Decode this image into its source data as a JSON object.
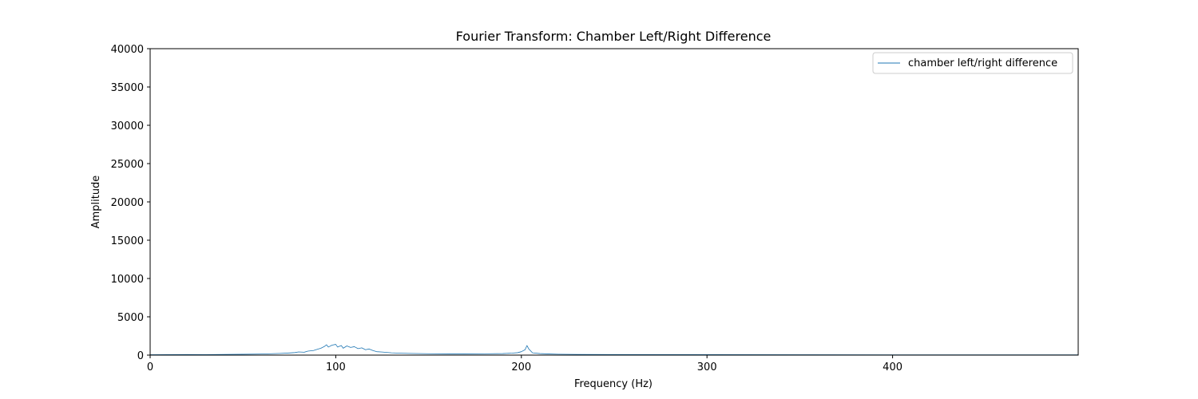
{
  "chart_data": {
    "type": "line",
    "title": "Fourier Transform: Chamber Left/Right Difference",
    "xlabel": "Frequency (Hz)",
    "ylabel": "Amplitude",
    "xlim": [
      0,
      500
    ],
    "ylim": [
      0,
      40000
    ],
    "xticks": [
      0,
      100,
      200,
      300,
      400
    ],
    "xtick_labels": [
      "0",
      "100",
      "200",
      "300",
      "400"
    ],
    "yticks": [
      0,
      5000,
      10000,
      15000,
      20000,
      25000,
      30000,
      35000,
      40000
    ],
    "ytick_labels": [
      "0",
      "5000",
      "10000",
      "15000",
      "20000",
      "25000",
      "30000",
      "35000",
      "40000"
    ],
    "grid": false,
    "legend_position": "top-right",
    "series": [
      {
        "name": "chamber left/right difference",
        "color": "#1f77b4",
        "x": [
          0,
          10,
          20,
          30,
          40,
          50,
          60,
          65,
          70,
          75,
          78,
          80,
          83,
          85,
          88,
          90,
          92,
          94,
          95,
          96,
          98,
          100,
          101,
          103,
          104,
          106,
          108,
          110,
          112,
          114,
          116,
          118,
          120,
          122,
          125,
          130,
          135,
          140,
          150,
          160,
          170,
          180,
          190,
          195,
          198,
          200,
          202,
          203,
          204,
          206,
          210,
          215,
          220,
          230,
          250,
          300,
          350,
          400,
          450,
          500
        ],
        "y": [
          50,
          60,
          80,
          60,
          90,
          110,
          140,
          180,
          220,
          280,
          330,
          420,
          380,
          520,
          600,
          750,
          900,
          1150,
          1350,
          1050,
          1300,
          1400,
          1050,
          1250,
          900,
          1200,
          1000,
          1100,
          850,
          950,
          700,
          800,
          600,
          450,
          400,
          300,
          250,
          220,
          180,
          160,
          150,
          170,
          200,
          260,
          320,
          450,
          700,
          1250,
          800,
          300,
          200,
          150,
          120,
          90,
          70,
          60,
          50,
          40,
          35,
          30
        ]
      }
    ]
  }
}
